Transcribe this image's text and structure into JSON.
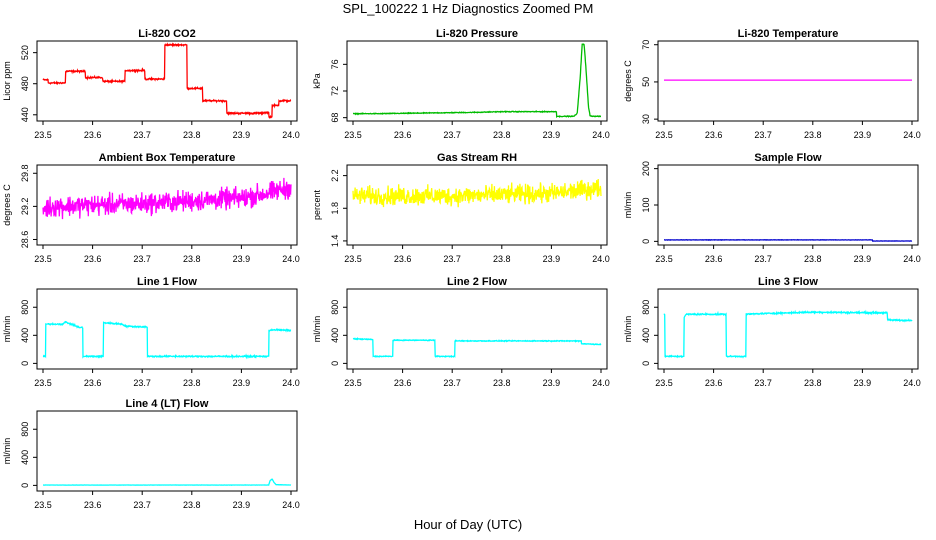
{
  "page": {
    "title": "SPL_100222  1 Hz Diagnostics Zoomed PM",
    "xlabel": "Hour of Day (UTC)"
  },
  "chart_data": [
    {
      "type": "line",
      "title": "Li-820 CO2",
      "ylabel": "Licor ppm",
      "color": "#ff0000",
      "xlim": [
        23.5,
        24.0
      ],
      "xticks": [
        "23.5",
        "23.6",
        "23.7",
        "23.8",
        "23.9",
        "24.0"
      ],
      "ylim": [
        432,
        535
      ],
      "yticks": [
        "440",
        "480",
        "520"
      ],
      "ytick_values": [
        440,
        480,
        520
      ],
      "noise": 1.5,
      "x": [
        23.5,
        23.51,
        23.51,
        23.545,
        23.545,
        23.585,
        23.585,
        23.62,
        23.62,
        23.665,
        23.665,
        23.705,
        23.705,
        23.745,
        23.745,
        23.79,
        23.79,
        23.822,
        23.822,
        23.87,
        23.87,
        23.945,
        23.945,
        23.955,
        23.955,
        23.962,
        23.962,
        23.975,
        23.975,
        24.0
      ],
      "y": [
        485,
        485,
        481,
        481,
        496,
        496,
        488,
        488,
        483,
        483,
        497,
        497,
        486,
        486,
        530,
        530,
        474,
        474,
        458,
        458,
        442,
        442,
        443,
        443,
        437,
        437,
        452,
        452,
        458,
        458
      ]
    },
    {
      "type": "line",
      "title": "Li-820 Pressure",
      "ylabel": "kPa",
      "color": "#00bb00",
      "xlim": [
        23.5,
        24.0
      ],
      "xticks": [
        "23.5",
        "23.6",
        "23.7",
        "23.8",
        "23.9",
        "24.0"
      ],
      "ylim": [
        67.5,
        79.5
      ],
      "yticks": [
        "68",
        "72",
        "76"
      ],
      "ytick_values": [
        68,
        72,
        76
      ],
      "noise": 0.08,
      "x": [
        23.5,
        23.55,
        23.65,
        23.75,
        23.8,
        23.85,
        23.9,
        23.91,
        23.91,
        23.945,
        23.952,
        23.958,
        23.962,
        23.966,
        23.97,
        23.975,
        23.978,
        23.984,
        24.0
      ],
      "y": [
        68.6,
        68.6,
        68.7,
        68.8,
        68.9,
        68.9,
        68.9,
        68.9,
        68.2,
        68.2,
        68.6,
        74,
        79,
        79,
        75,
        69.5,
        68.3,
        68.2,
        68.2
      ]
    },
    {
      "type": "line",
      "title": "Li-820 Temperature",
      "ylabel": "degrees C",
      "color": "#ff00ff",
      "xlim": [
        23.5,
        24.0
      ],
      "xticks": [
        "23.5",
        "23.6",
        "23.7",
        "23.8",
        "23.9",
        "24.0"
      ],
      "ylim": [
        29,
        72
      ],
      "yticks": [
        "30",
        "50",
        "70"
      ],
      "ytick_values": [
        30,
        50,
        70
      ],
      "noise": 0,
      "x": [
        23.5,
        24.0
      ],
      "y": [
        51,
        51
      ]
    },
    {
      "type": "line",
      "title": "Ambient Box Temperature",
      "ylabel": "degrees C",
      "color": "#ff00ff",
      "xlim": [
        23.5,
        24.0
      ],
      "xticks": [
        "23.5",
        "23.6",
        "23.7",
        "23.8",
        "23.9",
        "24.0"
      ],
      "ylim": [
        28.5,
        29.95
      ],
      "yticks": [
        "28.6",
        "29.2",
        "29.8"
      ],
      "ytick_values": [
        28.6,
        29.2,
        29.8
      ],
      "noise": 0.28,
      "x": [
        23.5,
        23.52,
        23.7,
        23.9,
        23.96,
        24.0
      ],
      "y": [
        29.15,
        29.2,
        29.25,
        29.35,
        29.45,
        29.55
      ]
    },
    {
      "type": "line",
      "title": "Gas Stream RH",
      "ylabel": "percent",
      "color": "#ffff00",
      "xlim": [
        23.5,
        24.0
      ],
      "xticks": [
        "23.5",
        "23.6",
        "23.7",
        "23.8",
        "23.9",
        "24.0"
      ],
      "ylim": [
        1.35,
        2.33
      ],
      "yticks": [
        "1.4",
        "1.8",
        "2.2"
      ],
      "ytick_values": [
        1.4,
        1.8,
        2.2
      ],
      "noise": 0.17,
      "x": [
        23.5,
        23.7,
        23.9,
        23.96,
        24.0
      ],
      "y": [
        1.95,
        1.95,
        1.98,
        2.02,
        2.05
      ]
    },
    {
      "type": "line",
      "title": "Sample Flow",
      "ylabel": "ml/min",
      "color": "#0000cc",
      "xlim": [
        23.5,
        24.0
      ],
      "xticks": [
        "23.5",
        "23.6",
        "23.7",
        "23.8",
        "23.9",
        "24.0"
      ],
      "ylim": [
        -10,
        210
      ],
      "yticks": [
        "0",
        "100",
        "200"
      ],
      "ytick_values": [
        0,
        100,
        200
      ],
      "noise": 0.6,
      "x": [
        23.5,
        23.92,
        23.92,
        24.0
      ],
      "y": [
        4,
        4,
        1,
        1
      ]
    },
    {
      "type": "line",
      "title": "Line 1 Flow",
      "ylabel": "ml/min",
      "color": "#00ffff",
      "xlim": [
        23.5,
        24.0
      ],
      "xticks": [
        "23.5",
        "23.6",
        "23.7",
        "23.8",
        "23.9",
        "24.0"
      ],
      "ylim": [
        -80,
        1060
      ],
      "yticks": [
        "0",
        "400",
        "800"
      ],
      "ytick_values": [
        0,
        400,
        800
      ],
      "noise": 14,
      "x": [
        23.5,
        23.505,
        23.505,
        23.54,
        23.545,
        23.575,
        23.58,
        23.58,
        23.622,
        23.622,
        23.66,
        23.665,
        23.705,
        23.71,
        23.71,
        23.955,
        23.955,
        23.96,
        24.0
      ],
      "y": [
        100,
        100,
        560,
        560,
        590,
        510,
        510,
        100,
        100,
        580,
        560,
        530,
        520,
        520,
        100,
        100,
        460,
        480,
        470
      ]
    },
    {
      "type": "line",
      "title": "Line 2 Flow",
      "ylabel": "ml/min",
      "color": "#00ffff",
      "xlim": [
        23.5,
        24.0
      ],
      "xticks": [
        "23.5",
        "23.6",
        "23.7",
        "23.8",
        "23.9",
        "24.0"
      ],
      "ylim": [
        -80,
        1060
      ],
      "yticks": [
        "0",
        "400",
        "800"
      ],
      "ytick_values": [
        0,
        400,
        800
      ],
      "noise": 9,
      "x": [
        23.5,
        23.54,
        23.54,
        23.58,
        23.58,
        23.665,
        23.665,
        23.705,
        23.705,
        23.96,
        23.96,
        24.0
      ],
      "y": [
        350,
        340,
        100,
        100,
        330,
        330,
        100,
        100,
        320,
        320,
        280,
        270
      ]
    },
    {
      "type": "line",
      "title": "Line 3 Flow",
      "ylabel": "ml/min",
      "color": "#00ffff",
      "xlim": [
        23.5,
        24.0
      ],
      "xticks": [
        "23.5",
        "23.6",
        "23.7",
        "23.8",
        "23.9",
        "24.0"
      ],
      "ylim": [
        -80,
        1060
      ],
      "yticks": [
        "0",
        "400",
        "800"
      ],
      "ytick_values": [
        0,
        400,
        800
      ],
      "noise": 14,
      "x": [
        23.5,
        23.502,
        23.502,
        23.54,
        23.54,
        23.545,
        23.625,
        23.625,
        23.665,
        23.665,
        23.7,
        23.8,
        23.95,
        23.95,
        24.0
      ],
      "y": [
        700,
        700,
        100,
        100,
        650,
        700,
        700,
        100,
        100,
        700,
        710,
        730,
        720,
        620,
        610
      ]
    },
    {
      "type": "line",
      "title": "Line 4 (LT) Flow",
      "ylabel": "ml/min",
      "color": "#00ffff",
      "xlim": [
        23.5,
        24.0
      ],
      "xticks": [
        "23.5",
        "23.6",
        "23.7",
        "23.8",
        "23.9",
        "24.0"
      ],
      "ylim": [
        -80,
        1060
      ],
      "yticks": [
        "0",
        "400",
        "800"
      ],
      "ytick_values": [
        0,
        400,
        800
      ],
      "noise": 2,
      "x": [
        23.5,
        23.955,
        23.958,
        23.962,
        23.966,
        23.97,
        24.0
      ],
      "y": [
        5,
        5,
        70,
        90,
        40,
        10,
        5
      ]
    }
  ]
}
